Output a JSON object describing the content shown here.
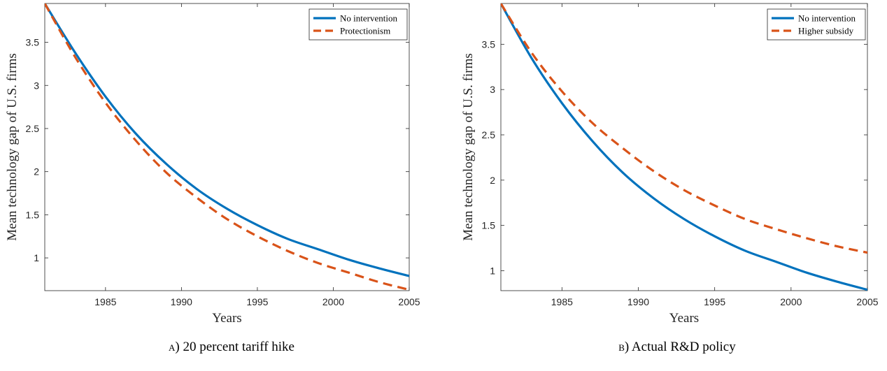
{
  "chart_data": [
    {
      "type": "line",
      "caption_letter": "a",
      "caption_text": ") 20 percent tariff hike",
      "xlabel": "Years",
      "ylabel": "Mean technology gap of U.S. firms",
      "xlim": [
        1981,
        2005
      ],
      "ylim": [
        0.62,
        3.95
      ],
      "xticks": [
        1985,
        1990,
        1995,
        2000,
        2005
      ],
      "yticks": [
        1,
        1.5,
        2,
        2.5,
        3,
        3.5
      ],
      "grid": false,
      "legend_position": "top-right",
      "series": [
        {
          "name": "No intervention",
          "color": "#0072BD",
          "style": "solid",
          "x": [
            1981,
            1983,
            1985,
            1987,
            1989,
            1991,
            1993,
            1995,
            1997,
            1999,
            2001,
            2003,
            2005
          ],
          "y": [
            3.95,
            3.38,
            2.87,
            2.44,
            2.09,
            1.8,
            1.57,
            1.38,
            1.22,
            1.1,
            0.98,
            0.88,
            0.79
          ]
        },
        {
          "name": "Protectionism",
          "color": "#D95319",
          "style": "dashed",
          "x": [
            1981,
            1983,
            1985,
            1987,
            1989,
            1991,
            1993,
            1995,
            1997,
            1999,
            2001,
            2003,
            2005
          ],
          "y": [
            3.95,
            3.33,
            2.8,
            2.36,
            1.99,
            1.7,
            1.45,
            1.25,
            1.08,
            0.94,
            0.83,
            0.72,
            0.63
          ]
        }
      ]
    },
    {
      "type": "line",
      "caption_letter": "b",
      "caption_text": ") Actual R&D policy",
      "xlabel": "Years",
      "ylabel": "Mean technology gap of U.S. firms",
      "xlim": [
        1981,
        2005
      ],
      "ylim": [
        0.78,
        3.95
      ],
      "xticks": [
        1985,
        1990,
        1995,
        2000,
        2005
      ],
      "yticks": [
        1,
        1.5,
        2,
        2.5,
        3,
        3.5
      ],
      "grid": false,
      "legend_position": "top-right",
      "series": [
        {
          "name": "No intervention",
          "color": "#0072BD",
          "style": "solid",
          "x": [
            1981,
            1983,
            1985,
            1987,
            1989,
            1991,
            1993,
            1995,
            1997,
            1999,
            2001,
            2003,
            2005
          ],
          "y": [
            3.95,
            3.35,
            2.85,
            2.43,
            2.08,
            1.8,
            1.57,
            1.38,
            1.22,
            1.1,
            0.98,
            0.88,
            0.79
          ]
        },
        {
          "name": "Higher subsidy",
          "color": "#D95319",
          "style": "dashed",
          "x": [
            1981,
            1983,
            1985,
            1987,
            1989,
            1991,
            1993,
            1995,
            1997,
            1999,
            2001,
            2003,
            2005
          ],
          "y": [
            3.95,
            3.41,
            2.98,
            2.63,
            2.35,
            2.1,
            1.89,
            1.72,
            1.57,
            1.46,
            1.36,
            1.27,
            1.2
          ]
        }
      ]
    }
  ]
}
